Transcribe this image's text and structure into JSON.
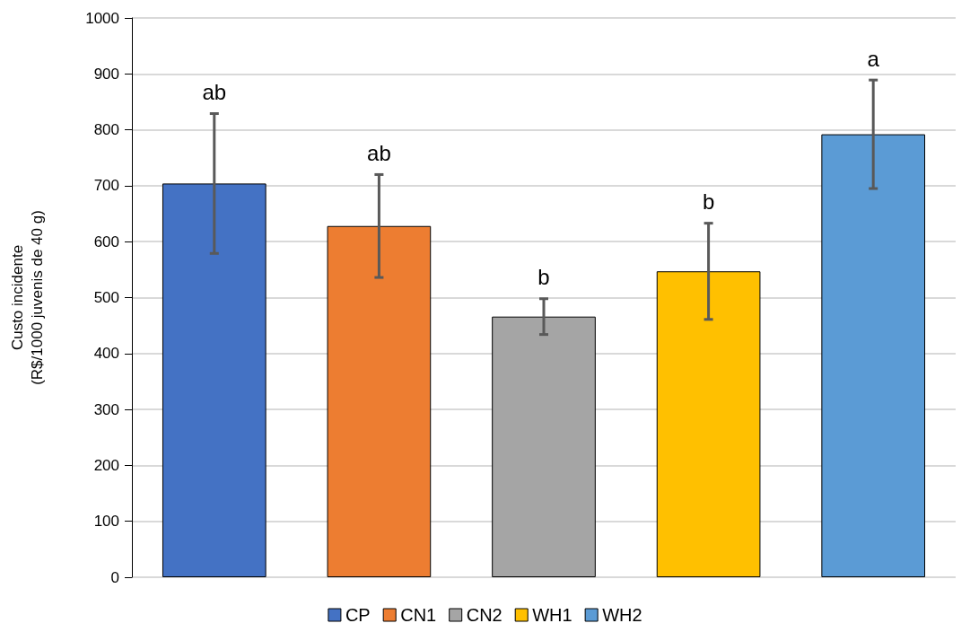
{
  "chart_data": {
    "type": "bar",
    "ylabel": "Custo incidente\n(R$/1000 juvenis de 40 g)",
    "categories": [
      null,
      null,
      null,
      null,
      null
    ],
    "series": [
      {
        "name": "CP",
        "color": "#4472c4",
        "values": [
          704,
          null,
          null,
          null,
          null
        ],
        "errors": [
          125,
          null,
          null,
          null,
          null
        ]
      },
      {
        "name": "CN1",
        "color": "#ed7d31",
        "values": [
          null,
          628,
          null,
          null,
          null
        ],
        "errors": [
          null,
          92,
          null,
          null,
          null
        ]
      },
      {
        "name": "CN2",
        "color": "#a5a5a5",
        "values": [
          null,
          null,
          466,
          null,
          null
        ],
        "errors": [
          null,
          null,
          32,
          null,
          null
        ]
      },
      {
        "name": "WH1",
        "color": "#ffc000",
        "values": [
          null,
          null,
          null,
          547,
          null
        ],
        "errors": [
          null,
          null,
          null,
          86,
          null
        ]
      },
      {
        "name": "WH2",
        "color": "#5b9bd5",
        "values": [
          null,
          null,
          null,
          null,
          792
        ],
        "errors": [
          null,
          null,
          null,
          null,
          97
        ]
      }
    ],
    "annotations": [
      "ab",
      "ab",
      "b",
      "b",
      "a"
    ],
    "ylim": [
      0,
      1000
    ],
    "yticks": [
      0,
      100,
      200,
      300,
      400,
      500,
      600,
      700,
      800,
      900,
      1000
    ],
    "grid": "y",
    "legend": "bottom"
  }
}
